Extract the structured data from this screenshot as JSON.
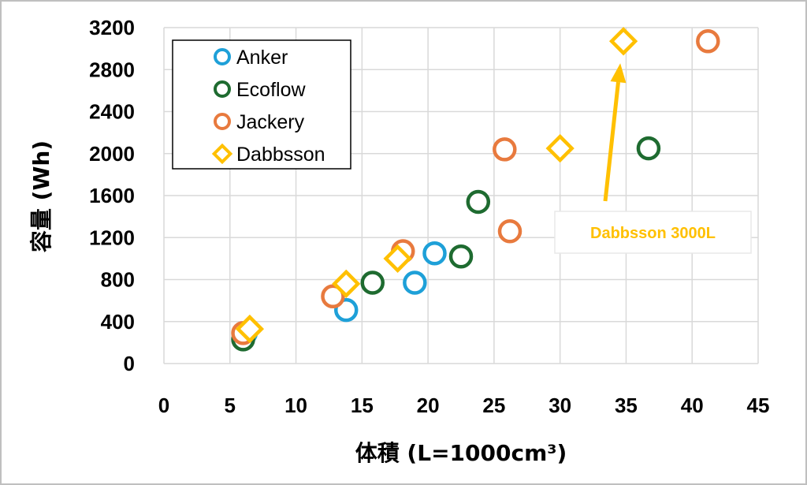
{
  "chart_data": {
    "type": "scatter",
    "xlabel": "体積 (L=1000cm³)",
    "ylabel": "容量 (Wh)",
    "xlim": [
      0,
      45
    ],
    "ylim": [
      0,
      3200
    ],
    "x_ticks": [
      0,
      5,
      10,
      15,
      20,
      25,
      30,
      35,
      40,
      45
    ],
    "y_ticks": [
      0,
      400,
      800,
      1200,
      1600,
      2000,
      2400,
      2800,
      3200
    ],
    "grid": "vertical-and-horizontal",
    "legend_position": "top-left",
    "series": [
      {
        "name": "Anker",
        "marker": "circle",
        "color": "#1ea0d8",
        "points": [
          [
            6.2,
            290
          ],
          [
            13.8,
            510
          ],
          [
            19.0,
            770
          ],
          [
            20.5,
            1050
          ]
        ]
      },
      {
        "name": "Ecoflow",
        "marker": "circle",
        "color": "#1e6b30",
        "points": [
          [
            6.0,
            230
          ],
          [
            15.8,
            770
          ],
          [
            22.5,
            1020
          ],
          [
            23.8,
            1540
          ],
          [
            36.7,
            2050
          ]
        ]
      },
      {
        "name": "Jackery",
        "marker": "circle",
        "color": "#e87a3e",
        "points": [
          [
            6.0,
            290
          ],
          [
            12.8,
            640
          ],
          [
            18.1,
            1070
          ],
          [
            25.8,
            2040
          ],
          [
            26.2,
            1260
          ],
          [
            41.2,
            3070
          ]
        ]
      },
      {
        "name": "Dabbsson",
        "marker": "diamond",
        "color": "#ffc000",
        "points": [
          [
            6.5,
            330
          ],
          [
            13.8,
            760
          ],
          [
            17.7,
            1000
          ],
          [
            30.0,
            2050
          ],
          [
            34.8,
            3070
          ]
        ]
      }
    ],
    "annotations": [
      {
        "text": "Dabbsson 3000L",
        "color": "#ffc000",
        "target": [
          34.8,
          3070
        ]
      }
    ]
  }
}
